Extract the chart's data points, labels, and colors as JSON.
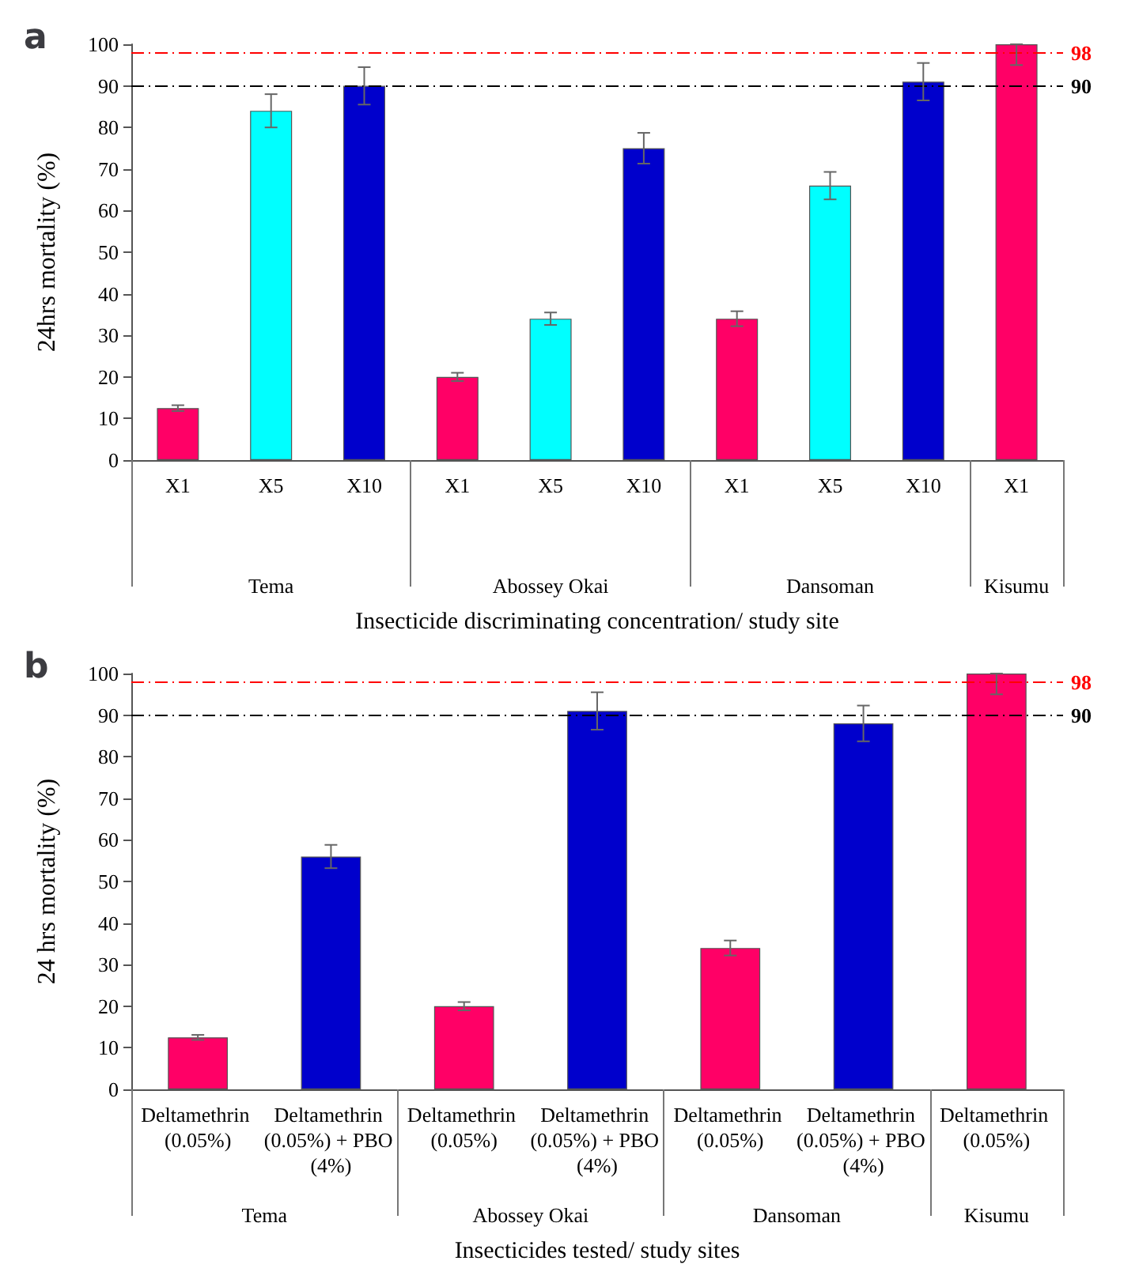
{
  "chart_data": [
    {
      "type": "bar",
      "title": "a",
      "xlabel": "Insecticide discriminating concentration/ study site",
      "ylabel": "24hrs mortality (%)",
      "categories": [
        "X1",
        "X5",
        "X10",
        "X1",
        "X5",
        "X10",
        "X1",
        "X5",
        "X10",
        "X1"
      ],
      "values": [
        12.5,
        84,
        90,
        20,
        34,
        75,
        34,
        66,
        91,
        100
      ],
      "errors": [
        0.7,
        4,
        4.5,
        1,
        1.5,
        3.7,
        1.8,
        3.3,
        4.5,
        [
          95,
          100
        ]
      ],
      "colors": [
        "#ff0066",
        "#00ffff",
        "#0000cc",
        "#ff0066",
        "#00ffff",
        "#0000cc",
        "#ff0066",
        "#00ffff",
        "#0000cc",
        "#ff0066"
      ],
      "ylim": [
        0,
        100
      ],
      "yticks": [
        0,
        10,
        20,
        30,
        40,
        50,
        60,
        70,
        80,
        90,
        100
      ],
      "grid": false,
      "ref_lines": [
        {
          "axis": "y",
          "value": 98,
          "label": "98",
          "color": "#ff0000",
          "line_style": "dashed"
        },
        {
          "axis": "y",
          "value": 90,
          "label": "90",
          "color": "#000000",
          "line_style": "dashed"
        }
      ],
      "annotations": [
        "Tema",
        "Abossey Okai",
        "Dansoman",
        "Kisumu"
      ]
    },
    {
      "type": "bar",
      "title": "b",
      "xlabel": "Insecticides tested/ study sites",
      "ylabel": "24 hrs mortality (%)",
      "categories": [
        "Deltamethrin (0.05%)",
        "Deltamethrin (0.05%) + PBO (4%)",
        "Deltamethrin (0.05%)",
        "Deltamethrin (0.05%) + PBO (4%)",
        "Deltamethrin (0.05%)",
        "Deltamethrin (0.05%) + PBO (4%)",
        "Deltamethrin (0.05%)"
      ],
      "values": [
        12.5,
        56,
        20,
        91,
        34,
        88,
        100
      ],
      "errors": [
        0.6,
        2.8,
        1,
        4.5,
        1.8,
        4.3,
        [
          95,
          100
        ]
      ],
      "colors": [
        "#ff0066",
        "#0000cc",
        "#ff0066",
        "#0000cc",
        "#ff0066",
        "#0000cc",
        "#ff0066"
      ],
      "ylim": [
        0,
        100
      ],
      "yticks": [
        0,
        10,
        20,
        30,
        40,
        50,
        60,
        70,
        80,
        90,
        100
      ],
      "grid": false,
      "ref_lines": [
        {
          "axis": "y",
          "value": 98,
          "label": "98",
          "color": "#ff0000",
          "line_style": "dashed"
        },
        {
          "axis": "y",
          "value": 90,
          "label": "90",
          "color": "#000000",
          "line_style": "dashed"
        }
      ],
      "annotations": [
        "Tema",
        "Abossey Okai",
        "Dansoman",
        "Kisumu"
      ]
    }
  ]
}
